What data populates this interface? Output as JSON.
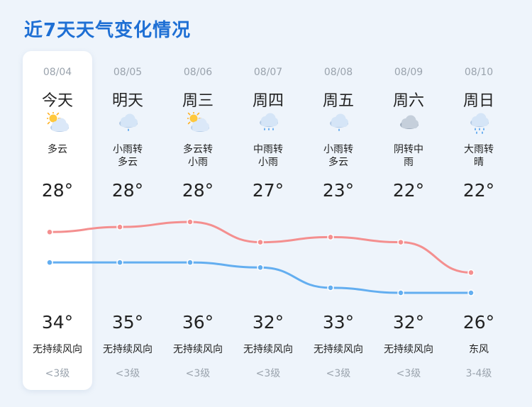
{
  "title": "近7天天气变化情况",
  "colors": {
    "accent": "#1e6fd4",
    "upper_line": "#f48f8f",
    "lower_line": "#63aef0"
  },
  "days": [
    {
      "date": "08/04",
      "weekday": "今天",
      "icon": "partly-cloudy-icon",
      "condition": "多云",
      "low": "28°",
      "high": "34°",
      "wind": "无持续风向",
      "level": "<3级"
    },
    {
      "date": "08/05",
      "weekday": "明天",
      "icon": "light-rain-icon",
      "condition": "小雨转\n多云",
      "low": "28°",
      "high": "35°",
      "wind": "无持续风向",
      "level": "<3级"
    },
    {
      "date": "08/06",
      "weekday": "周三",
      "icon": "partly-cloudy-icon",
      "condition": "多云转\n小雨",
      "low": "28°",
      "high": "36°",
      "wind": "无持续风向",
      "level": "<3级"
    },
    {
      "date": "08/07",
      "weekday": "周四",
      "icon": "moderate-rain-icon",
      "condition": "中雨转\n小雨",
      "low": "27°",
      "high": "32°",
      "wind": "无持续风向",
      "level": "<3级"
    },
    {
      "date": "08/08",
      "weekday": "周五",
      "icon": "light-rain-icon",
      "condition": "小雨转\n多云",
      "low": "23°",
      "high": "33°",
      "wind": "无持续风向",
      "level": "<3级"
    },
    {
      "date": "08/09",
      "weekday": "周六",
      "icon": "overcast-icon",
      "condition": "阴转中\n雨",
      "low": "22°",
      "high": "32°",
      "wind": "无持续风向",
      "level": "<3级"
    },
    {
      "date": "08/10",
      "weekday": "周日",
      "icon": "heavy-rain-icon",
      "condition": "大雨转\n晴",
      "low": "22°",
      "high": "26°",
      "wind": "东风",
      "level": "3-4级"
    }
  ],
  "chart_data": {
    "type": "line",
    "x": [
      "08/04",
      "08/05",
      "08/06",
      "08/07",
      "08/08",
      "08/09",
      "08/10"
    ],
    "series": [
      {
        "values": [
          34,
          35,
          36,
          32,
          33,
          32,
          26
        ],
        "color": "#f48f8f"
      },
      {
        "values": [
          28,
          28,
          28,
          27,
          23,
          22,
          22
        ],
        "color": "#63aef0"
      }
    ]
  }
}
